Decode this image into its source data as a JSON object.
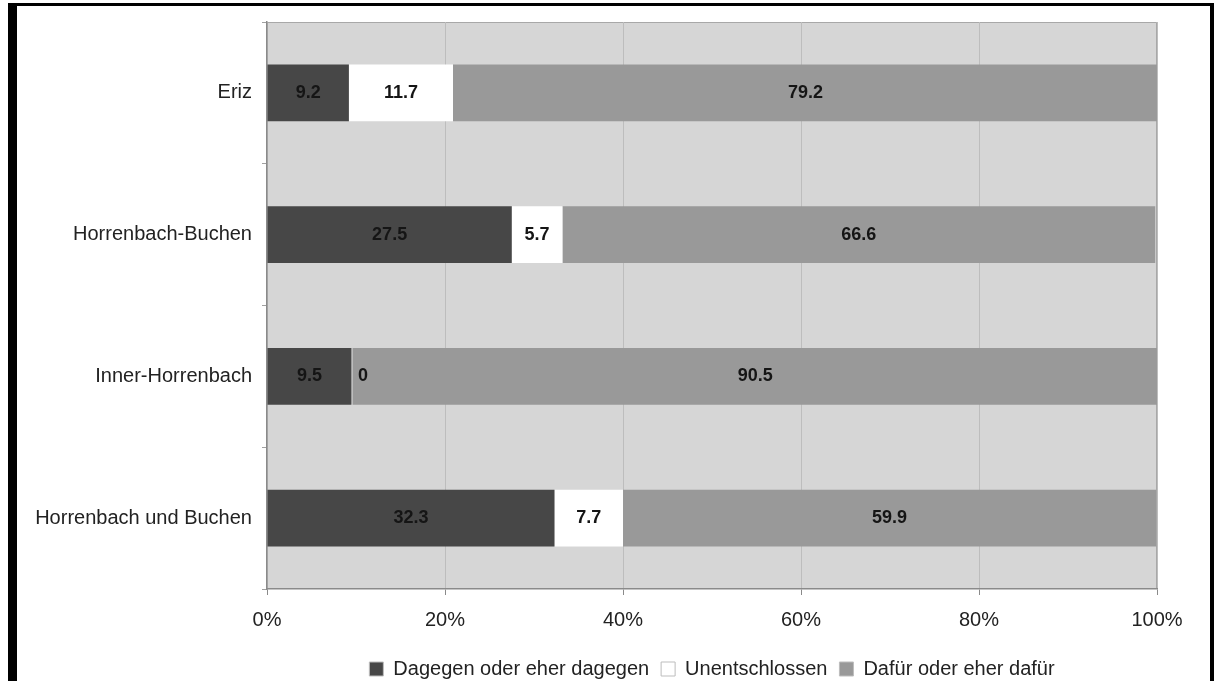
{
  "chart_data": {
    "type": "bar",
    "orientation": "horizontal",
    "stacked": true,
    "categories": [
      "Eriz",
      "Horrenbach-Buchen",
      "Inner-Horrenbach",
      "Horrenbach und Buchen"
    ],
    "series": [
      {
        "name": "Dagegen oder eher dagegen",
        "color": "#474747",
        "values": [
          9.2,
          27.5,
          9.5,
          32.3
        ]
      },
      {
        "name": "Unentschlossen",
        "color": "#ffffff",
        "values": [
          11.7,
          5.7,
          0,
          7.7
        ]
      },
      {
        "name": "Dafür oder eher dafür",
        "color": "#999999",
        "values": [
          79.2,
          66.6,
          90.5,
          59.9
        ]
      }
    ],
    "xlim": [
      0,
      100
    ],
    "xticks": [
      {
        "value": 0,
        "label": "0%"
      },
      {
        "value": 20,
        "label": "20%"
      },
      {
        "value": 40,
        "label": "40%"
      },
      {
        "value": 60,
        "label": "60%"
      },
      {
        "value": 80,
        "label": "80%"
      },
      {
        "value": 100,
        "label": "100%"
      }
    ],
    "grid": "x",
    "legend": "bottom",
    "data_labels": true
  }
}
